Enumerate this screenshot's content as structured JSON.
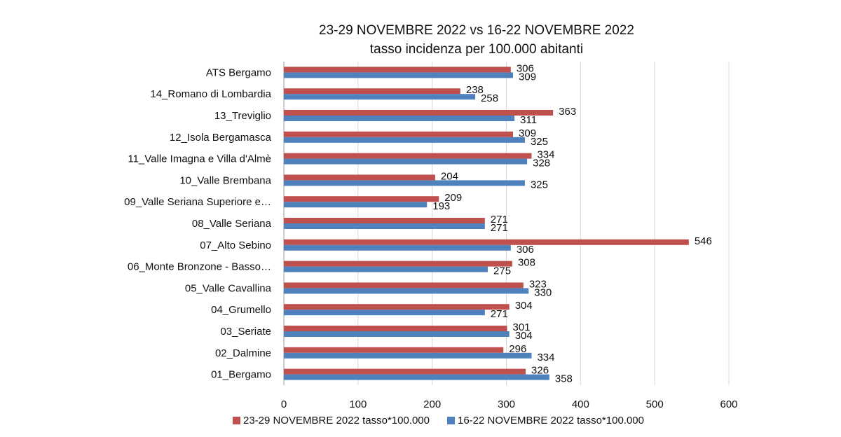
{
  "chart_data": {
    "type": "bar",
    "orientation": "horizontal",
    "title": "23-29 NOVEMBRE 2022 vs 16-22 NOVEMBRE 2022",
    "subtitle": "tasso incidenza per 100.000 abitanti",
    "xlabel": "",
    "ylabel": "",
    "xlim": [
      0,
      600
    ],
    "xticks": [
      0,
      100,
      200,
      300,
      400,
      500,
      600
    ],
    "grid": true,
    "legend_position": "bottom",
    "categories": [
      "ATS Bergamo",
      "14_Romano di Lombardia",
      "13_Treviglio",
      "12_Isola Bergamasca",
      "11_Valle Imagna e Villa d'Almè",
      "10_Valle Brembana",
      "09_Valle Seriana Superiore e…",
      "08_Valle Seriana",
      "07_Alto Sebino",
      "06_Monte Bronzone - Basso…",
      "05_Valle Cavallina",
      "04_Grumello",
      "03_Seriate",
      "02_Dalmine",
      "01_Bergamo"
    ],
    "series": [
      {
        "name": "23-29 NOVEMBRE 2022 tasso*100.000",
        "color": "#C0504D",
        "values": [
          306,
          238,
          363,
          309,
          334,
          204,
          209,
          271,
          546,
          308,
          323,
          304,
          301,
          296,
          326
        ]
      },
      {
        "name": "16-22 NOVEMBRE 2022 tasso*100.000",
        "color": "#4F81BD",
        "values": [
          309,
          258,
          311,
          325,
          328,
          325,
          193,
          271,
          306,
          275,
          330,
          271,
          304,
          334,
          358
        ]
      }
    ]
  }
}
